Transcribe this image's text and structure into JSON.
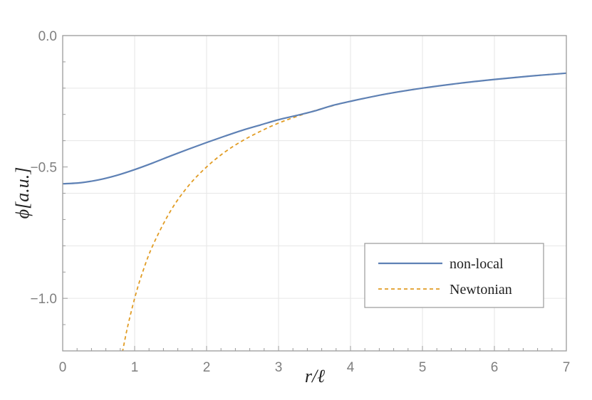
{
  "chart_data": {
    "type": "line",
    "title": "",
    "xlabel": "r/ℓ",
    "ylabel": "ϕ[a.u.]",
    "xlim": [
      0,
      7
    ],
    "ylim": [
      -1.2,
      0.0
    ],
    "grid": true,
    "legend_position": "bottom-right",
    "x_ticks": [
      0,
      1,
      2,
      3,
      4,
      5,
      6,
      7
    ],
    "x_tick_labels": [
      "0",
      "1",
      "2",
      "3",
      "4",
      "5",
      "6",
      "7"
    ],
    "y_ticks": [
      0.0,
      -0.5,
      -1.0
    ],
    "y_tick_labels": [
      "0.0",
      "−0.5",
      "−1.0"
    ],
    "series": [
      {
        "name": "non-local",
        "style": "solid",
        "color": "#5e81b5",
        "x": [
          0,
          0.25,
          0.5,
          0.75,
          1,
          1.25,
          1.5,
          1.75,
          2,
          2.25,
          2.5,
          2.75,
          3,
          3.25,
          3.5,
          3.75,
          4,
          4.5,
          5,
          5.5,
          6,
          6.5,
          7
        ],
        "y": [
          -0.564,
          -0.56,
          -0.549,
          -0.532,
          -0.51,
          -0.485,
          -0.458,
          -0.432,
          -0.407,
          -0.383,
          -0.36,
          -0.34,
          -0.32,
          -0.304,
          -0.287,
          -0.266,
          -0.25,
          -0.222,
          -0.2,
          -0.182,
          -0.167,
          -0.154,
          -0.143
        ]
      },
      {
        "name": "Newtonian",
        "style": "dashed",
        "color": "#e19c24",
        "x": [
          0.83,
          0.9,
          1,
          1.1,
          1.25,
          1.5,
          1.75,
          2,
          2.25,
          2.5,
          2.75,
          3,
          3.25,
          3.5,
          3.75,
          4,
          4.5,
          5,
          5.5,
          6,
          6.5,
          7
        ],
        "y": [
          -1.205,
          -1.111,
          -1.0,
          -0.909,
          -0.8,
          -0.667,
          -0.571,
          -0.5,
          -0.444,
          -0.4,
          -0.364,
          -0.333,
          -0.308,
          -0.286,
          -0.267,
          -0.25,
          -0.222,
          -0.2,
          -0.182,
          -0.167,
          -0.154,
          -0.143
        ]
      }
    ]
  }
}
